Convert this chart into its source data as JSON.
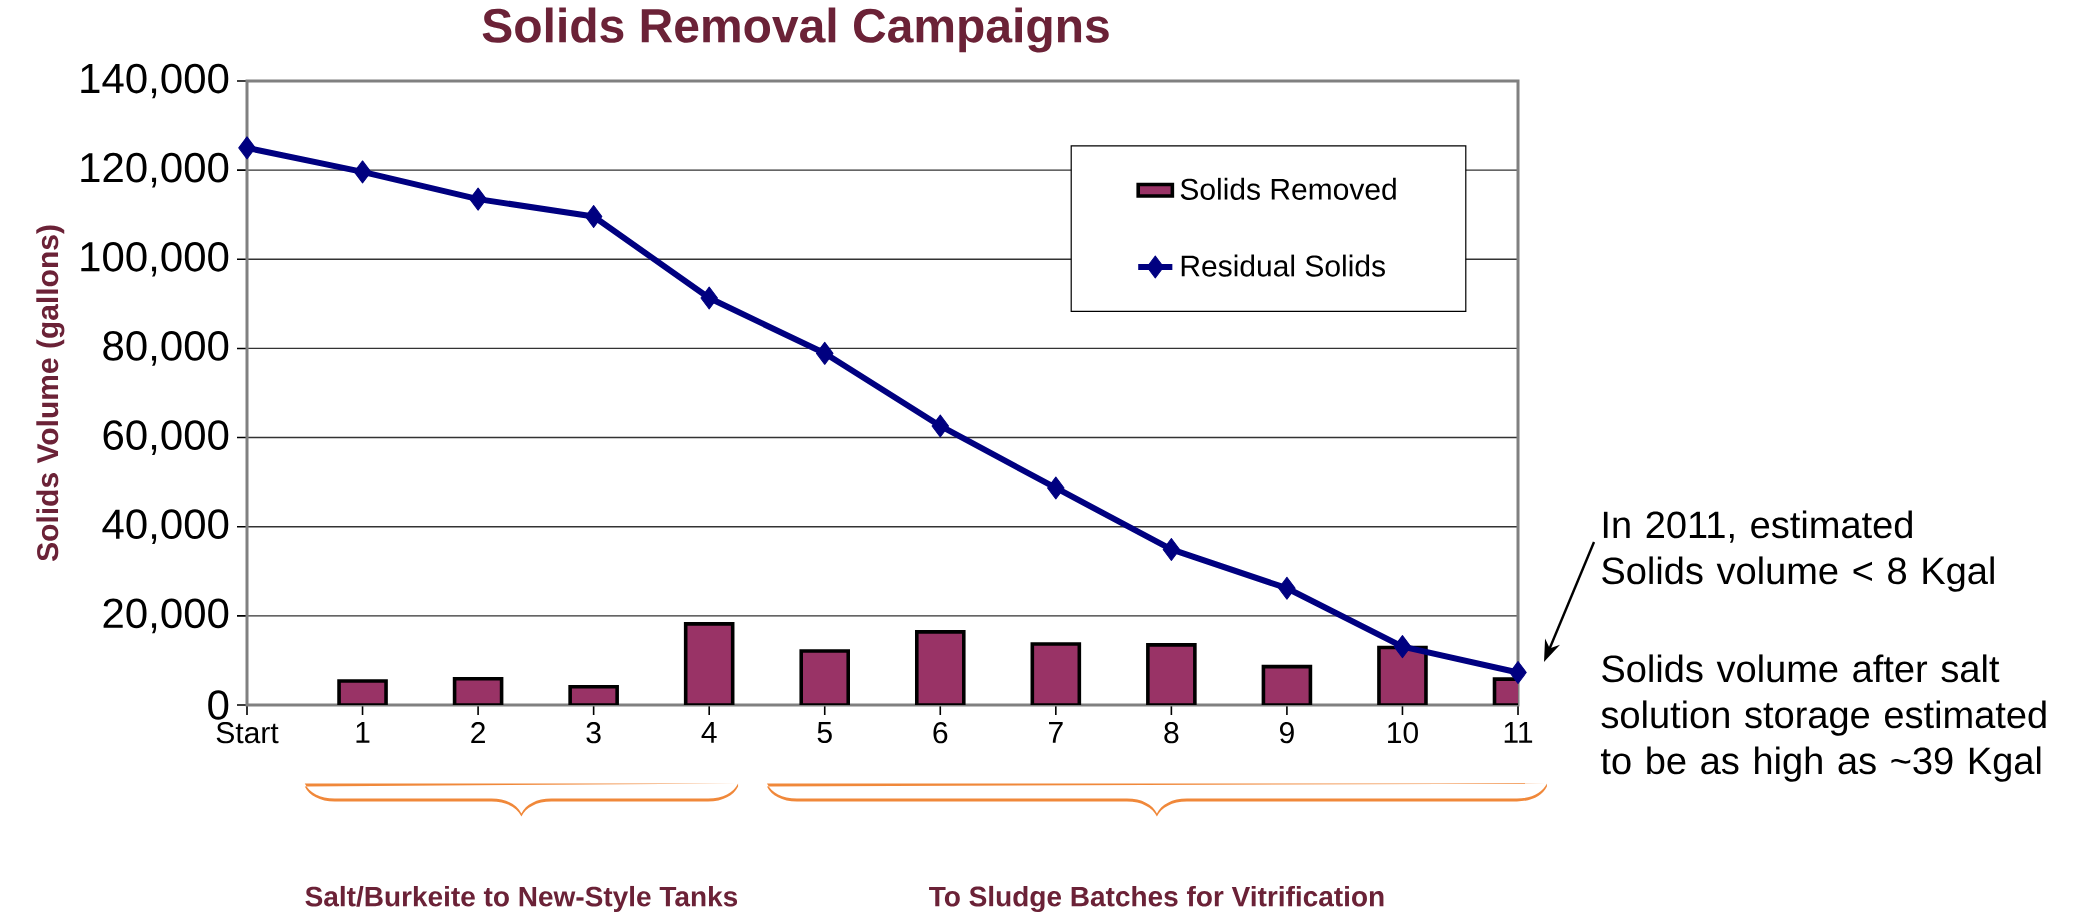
{
  "chart_data": {
    "type": "bar",
    "title": "Solids Removal Campaigns",
    "ylabel": "Solids  Volume (gallons)",
    "categories": [
      "Start",
      "1",
      "2",
      "3",
      "4",
      "5",
      "6",
      "7",
      "8",
      "9",
      "10",
      "11"
    ],
    "series": [
      {
        "name": "Solids Removed",
        "color": "#993366",
        "values": [
          null,
          5400,
          5900,
          4100,
          18200,
          12100,
          16400,
          13700,
          13500,
          8600,
          12900,
          5800
        ]
      },
      {
        "name": "Residual Solids",
        "type": "line",
        "color": "#000080",
        "values": [
          125000,
          119600,
          113500,
          109600,
          91300,
          78900,
          62600,
          48700,
          34900,
          26200,
          13100,
          7300
        ]
      }
    ],
    "ylim": [
      0,
      140000
    ],
    "yticks": [
      0,
      {
        "value": 20000,
        "label": "20,000"
      },
      {
        "value": 40000,
        "label": "40,000"
      },
      {
        "value": 60000,
        "label": "60,000"
      },
      {
        "value": 80000,
        "label": "80,000"
      },
      {
        "value": 100000,
        "label": "100,000"
      },
      {
        "value": 120000,
        "label": "120,000"
      },
      {
        "value": 140000,
        "label": "140,000"
      }
    ],
    "grid": "y",
    "legend": "top right",
    "marker": "diamond",
    "line_style": "solid",
    "annotations": [
      "In 2011, estimated Solids volume < 8 Kgal",
      "Solids volume after salt solution storage estimated to be as high as ~39 Kgal",
      "Salt/Burkeite to New-Style Tanks",
      "To Sludge Batches for Vitrification"
    ]
  }
}
